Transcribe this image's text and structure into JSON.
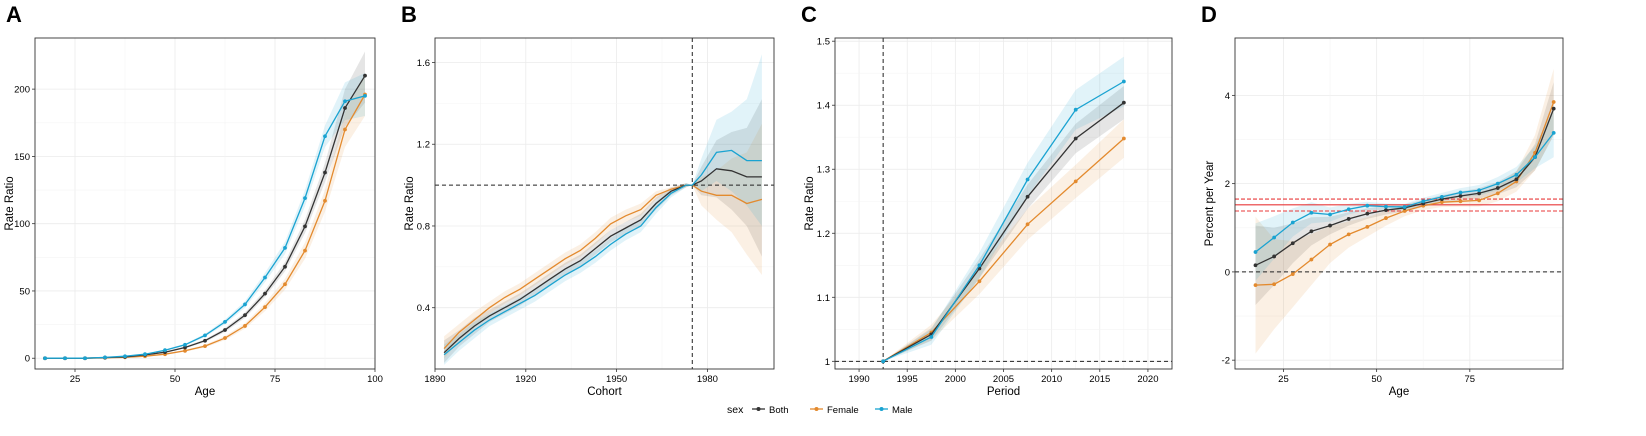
{
  "series_colors": {
    "both": "#333333",
    "female": "#E38A2E",
    "male": "#1AA3D1"
  },
  "legend": {
    "title": "sex",
    "items": [
      "Both",
      "Female",
      "Male"
    ]
  },
  "chart_data": [
    {
      "panel": "A",
      "type": "line",
      "xlabel": "Age",
      "ylabel": "Rate Ratio",
      "xlim": [
        15,
        100
      ],
      "ylim": [
        -8,
        238
      ],
      "xticks": [
        25,
        50,
        75,
        100
      ],
      "yticks": [
        0,
        50,
        100,
        150,
        200
      ],
      "x": [
        17.5,
        22.5,
        27.5,
        32.5,
        37.5,
        42.5,
        47.5,
        52.5,
        57.5,
        62.5,
        67.5,
        72.5,
        77.5,
        82.5,
        87.5,
        92.5,
        97.5
      ],
      "series": [
        {
          "name": "Both",
          "values": [
            0,
            0,
            0,
            0.5,
            1,
            2.5,
            4.5,
            8,
            13,
            21,
            32,
            48,
            68,
            98,
            138,
            186,
            210
          ],
          "lower": [
            0,
            0,
            0,
            0.4,
            0.8,
            2.2,
            4.0,
            7.3,
            12,
            19.5,
            30,
            45.5,
            64.5,
            93,
            131,
            172,
            190
          ],
          "upper": [
            0,
            0,
            0,
            0.6,
            1.2,
            2.8,
            5.0,
            8.7,
            14,
            22.5,
            34,
            50.5,
            71.5,
            103,
            145,
            200,
            228
          ],
          "markers": true
        },
        {
          "name": "Female",
          "values": [
            0,
            0,
            0,
            0.3,
            0.7,
            1.5,
            3,
            5.5,
            9,
            15,
            24,
            38,
            55,
            80,
            117,
            170,
            196
          ],
          "lower": [
            0,
            0,
            0,
            0.2,
            0.5,
            1.2,
            2.5,
            4.8,
            8,
            13.5,
            22,
            35,
            51,
            74,
            109,
            157,
            180
          ],
          "upper": [
            0,
            0,
            0,
            0.4,
            0.9,
            1.8,
            3.5,
            6.2,
            10,
            16.5,
            26,
            41,
            59,
            86,
            125,
            183,
            210
          ],
          "markers": true
        },
        {
          "name": "Male",
          "values": [
            0,
            0,
            0,
            0.6,
            1.5,
            3,
            6,
            10,
            17,
            27,
            40,
            60,
            82,
            119,
            165,
            191,
            195
          ],
          "lower": [
            0,
            0,
            0,
            0.5,
            1.2,
            2.6,
            5.4,
            9.2,
            15.8,
            25.2,
            37.5,
            56.5,
            77.5,
            113,
            157,
            177,
            180
          ],
          "upper": [
            0,
            0,
            0,
            0.7,
            1.8,
            3.4,
            6.6,
            10.8,
            18.2,
            28.8,
            42.5,
            63.5,
            86.5,
            125,
            173,
            205,
            212
          ],
          "markers": true
        }
      ]
    },
    {
      "panel": "B",
      "type": "line",
      "xlabel": "Cohort",
      "ylabel": "Rate Ratio",
      "xlim": [
        1890,
        2002
      ],
      "ylim": [
        0.1,
        1.72
      ],
      "xticks": [
        1890,
        1920,
        1950,
        1980
      ],
      "yticks": [
        0.4,
        0.8,
        1.2,
        1.6
      ],
      "vline": 1975,
      "hline": 1.0,
      "x": [
        1893,
        1898,
        1903,
        1908,
        1913,
        1918,
        1923,
        1928,
        1933,
        1938,
        1943,
        1948,
        1953,
        1958,
        1963,
        1968,
        1973,
        1975,
        1978,
        1983,
        1988,
        1993,
        1998
      ],
      "series": [
        {
          "name": "Both",
          "values": [
            0.18,
            0.25,
            0.31,
            0.36,
            0.4,
            0.44,
            0.49,
            0.54,
            0.59,
            0.63,
            0.69,
            0.75,
            0.79,
            0.83,
            0.91,
            0.97,
            1.0,
            1.0,
            1.02,
            1.08,
            1.07,
            1.04,
            1.04
          ],
          "lower": [
            0.13,
            0.21,
            0.27,
            0.33,
            0.37,
            0.41,
            0.46,
            0.51,
            0.56,
            0.6,
            0.66,
            0.72,
            0.76,
            0.8,
            0.88,
            0.95,
            0.99,
            1.0,
            0.95,
            0.94,
            0.88,
            0.8,
            0.65
          ],
          "upper": [
            0.24,
            0.29,
            0.35,
            0.39,
            0.43,
            0.47,
            0.52,
            0.57,
            0.62,
            0.66,
            0.72,
            0.78,
            0.82,
            0.86,
            0.94,
            0.99,
            1.01,
            1.0,
            1.09,
            1.22,
            1.26,
            1.28,
            1.42
          ],
          "markers": false
        },
        {
          "name": "Female",
          "values": [
            0.2,
            0.28,
            0.34,
            0.4,
            0.45,
            0.49,
            0.54,
            0.59,
            0.64,
            0.68,
            0.74,
            0.81,
            0.85,
            0.88,
            0.95,
            0.98,
            1.0,
            1.0,
            0.97,
            0.95,
            0.95,
            0.91,
            0.93
          ],
          "lower": [
            0.15,
            0.24,
            0.3,
            0.37,
            0.42,
            0.46,
            0.51,
            0.56,
            0.61,
            0.65,
            0.71,
            0.78,
            0.82,
            0.85,
            0.93,
            0.97,
            0.99,
            1.0,
            0.9,
            0.83,
            0.77,
            0.66,
            0.56
          ],
          "upper": [
            0.26,
            0.32,
            0.38,
            0.43,
            0.48,
            0.52,
            0.57,
            0.62,
            0.67,
            0.71,
            0.77,
            0.84,
            0.88,
            0.91,
            0.97,
            0.99,
            1.01,
            1.0,
            1.04,
            1.07,
            1.13,
            1.16,
            1.3
          ],
          "markers": false
        },
        {
          "name": "Male",
          "values": [
            0.17,
            0.23,
            0.29,
            0.34,
            0.38,
            0.42,
            0.46,
            0.51,
            0.56,
            0.6,
            0.65,
            0.71,
            0.76,
            0.8,
            0.89,
            0.96,
            1.0,
            1.0,
            1.05,
            1.16,
            1.17,
            1.12,
            1.12
          ],
          "lower": [
            0.12,
            0.19,
            0.25,
            0.31,
            0.35,
            0.39,
            0.43,
            0.48,
            0.53,
            0.57,
            0.62,
            0.68,
            0.73,
            0.77,
            0.86,
            0.94,
            0.99,
            1.0,
            0.97,
            1.02,
            0.97,
            0.9,
            0.8
          ],
          "upper": [
            0.22,
            0.27,
            0.33,
            0.37,
            0.41,
            0.45,
            0.49,
            0.54,
            0.59,
            0.63,
            0.68,
            0.74,
            0.79,
            0.83,
            0.92,
            0.98,
            1.01,
            1.0,
            1.13,
            1.32,
            1.36,
            1.42,
            1.64
          ],
          "markers": false
        }
      ]
    },
    {
      "panel": "C",
      "type": "line",
      "xlabel": "Period",
      "ylabel": "Rate Ratio",
      "xlim": [
        1987.5,
        2022.5
      ],
      "ylim": [
        0.988,
        1.505
      ],
      "xticks": [
        1990,
        1995,
        2000,
        2005,
        2010,
        2015,
        2020
      ],
      "yticks": [
        1.0,
        1.1,
        1.2,
        1.3,
        1.4,
        1.5
      ],
      "vline": 1992.5,
      "hline": 1.0,
      "x": [
        1992.5,
        1997.5,
        2002.5,
        2007.5,
        2012.5,
        2017.5
      ],
      "series": [
        {
          "name": "Both",
          "values": [
            1.0,
            1.042,
            1.145,
            1.257,
            1.348,
            1.404
          ],
          "lower": [
            1.0,
            1.032,
            1.13,
            1.238,
            1.325,
            1.378
          ],
          "upper": [
            1.0,
            1.052,
            1.16,
            1.276,
            1.371,
            1.43
          ],
          "markers": true
        },
        {
          "name": "Female",
          "values": [
            1.0,
            1.045,
            1.125,
            1.214,
            1.281,
            1.348
          ],
          "lower": [
            1.0,
            1.033,
            1.105,
            1.19,
            1.255,
            1.318
          ],
          "upper": [
            1.0,
            1.057,
            1.145,
            1.238,
            1.307,
            1.378
          ],
          "markers": true
        },
        {
          "name": "Male",
          "values": [
            1.0,
            1.038,
            1.15,
            1.284,
            1.393,
            1.437
          ],
          "lower": [
            1.0,
            1.026,
            1.13,
            1.258,
            1.362,
            1.398
          ],
          "upper": [
            1.0,
            1.05,
            1.17,
            1.31,
            1.424,
            1.476
          ],
          "markers": true
        }
      ]
    },
    {
      "panel": "D",
      "type": "line",
      "xlabel": "Age",
      "ylabel": "Percent per Year",
      "xlim": [
        12,
        100
      ],
      "ylim": [
        -2.2,
        5.3
      ],
      "xticks": [
        25,
        50,
        75
      ],
      "yticks": [
        -2,
        0,
        2,
        4
      ],
      "hline": 0,
      "red_lines": [
        1.38,
        1.52,
        1.65
      ],
      "x": [
        17.5,
        22.5,
        27.5,
        32.5,
        37.5,
        42.5,
        47.5,
        52.5,
        57.5,
        62.5,
        67.5,
        72.5,
        77.5,
        82.5,
        87.5,
        92.5,
        97.5
      ],
      "series": [
        {
          "name": "Both",
          "values": [
            0.15,
            0.35,
            0.65,
            0.92,
            1.05,
            1.2,
            1.32,
            1.4,
            1.45,
            1.55,
            1.65,
            1.72,
            1.78,
            1.9,
            2.1,
            2.6,
            3.7
          ],
          "lower": [
            -0.75,
            -0.3,
            0.2,
            0.6,
            0.85,
            1.05,
            1.2,
            1.3,
            1.37,
            1.47,
            1.56,
            1.62,
            1.66,
            1.76,
            1.92,
            2.3,
            3.1
          ],
          "upper": [
            1.05,
            1.0,
            1.1,
            1.24,
            1.25,
            1.35,
            1.44,
            1.5,
            1.53,
            1.63,
            1.74,
            1.82,
            1.9,
            2.04,
            2.28,
            2.9,
            4.3
          ],
          "markers": true
        },
        {
          "name": "Female",
          "values": [
            -0.3,
            -0.28,
            -0.05,
            0.28,
            0.62,
            0.85,
            1.02,
            1.22,
            1.38,
            1.5,
            1.58,
            1.6,
            1.62,
            1.78,
            2.05,
            2.7,
            3.85
          ],
          "lower": [
            -1.85,
            -1.3,
            -0.8,
            -0.3,
            0.2,
            0.55,
            0.8,
            1.05,
            1.26,
            1.4,
            1.47,
            1.48,
            1.48,
            1.6,
            1.82,
            2.3,
            3.1
          ],
          "upper": [
            1.25,
            0.74,
            0.7,
            0.86,
            1.04,
            1.15,
            1.24,
            1.39,
            1.5,
            1.6,
            1.69,
            1.72,
            1.76,
            1.96,
            2.28,
            3.1,
            4.6
          ],
          "markers": true
        },
        {
          "name": "Male",
          "values": [
            0.45,
            0.78,
            1.12,
            1.34,
            1.3,
            1.42,
            1.5,
            1.48,
            1.47,
            1.6,
            1.7,
            1.8,
            1.85,
            2.0,
            2.2,
            2.6,
            3.15
          ],
          "lower": [
            -0.2,
            0.3,
            0.8,
            1.1,
            1.14,
            1.3,
            1.41,
            1.41,
            1.4,
            1.52,
            1.61,
            1.7,
            1.73,
            1.85,
            2.02,
            2.35,
            2.6
          ],
          "upper": [
            1.1,
            1.26,
            1.44,
            1.58,
            1.46,
            1.54,
            1.59,
            1.55,
            1.54,
            1.68,
            1.79,
            1.9,
            1.97,
            2.15,
            2.38,
            2.85,
            3.7
          ],
          "markers": true
        }
      ]
    }
  ]
}
